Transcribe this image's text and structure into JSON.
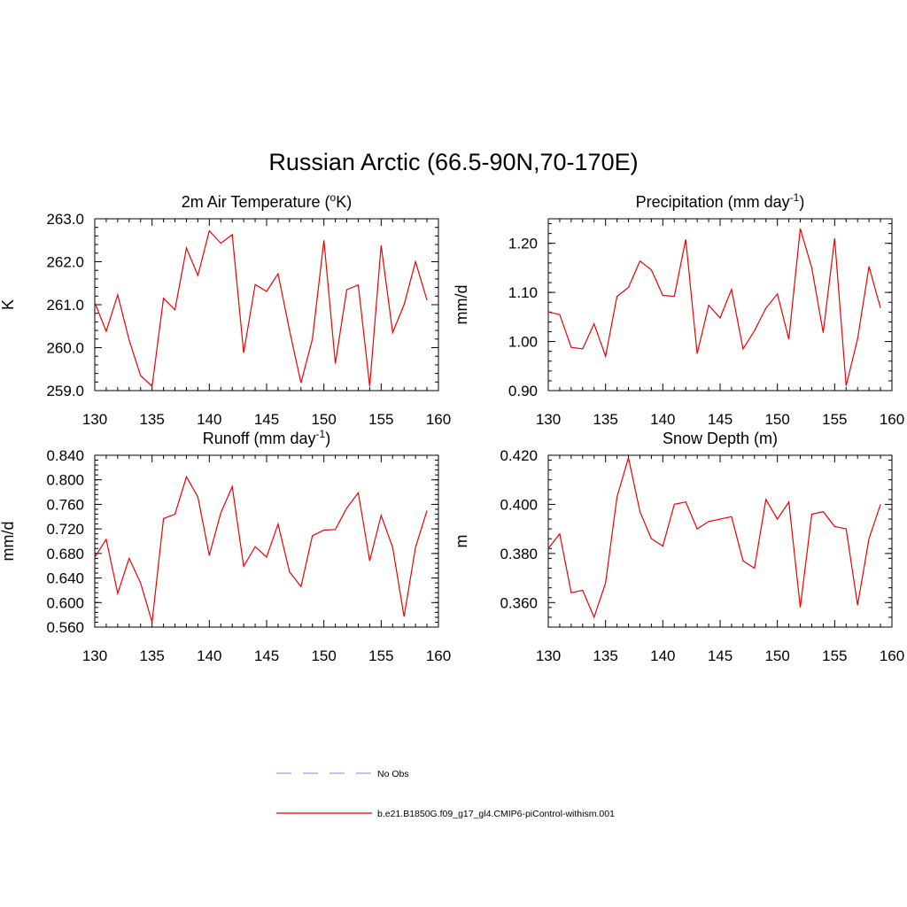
{
  "figure": {
    "title": "Russian Arctic (66.5-90N,70-170E)"
  },
  "legend": {
    "items": [
      {
        "label": "No Obs",
        "color": "#9999ff",
        "dashed": true
      },
      {
        "label": "b.e21.B1850G.f09_g17_gl4.CMIP6-piControl-withism.001",
        "color": "#ee0000",
        "dashed": false
      }
    ]
  },
  "chart_data": [
    {
      "type": "line",
      "title": "2m Air Temperature (oK)",
      "title_parts": {
        "pre": "2m Air Temperature (",
        "sup": "o",
        "post": "K)"
      },
      "ylabel": "K",
      "xlim": [
        130,
        160
      ],
      "ylim": [
        259.0,
        263.0
      ],
      "xticks": [
        130,
        135,
        140,
        145,
        150,
        155,
        160
      ],
      "yticks": [
        259.0,
        260.0,
        261.0,
        262.0,
        263.0
      ],
      "ydecimals": 1,
      "ytick_labels": [
        "259.0",
        "260.0",
        "261.0",
        "262.0",
        "263.0"
      ],
      "xtick_labels": [
        "130",
        "135",
        "140",
        "145",
        "150",
        "155",
        "160"
      ],
      "series": [
        {
          "name": "b.e21.B1850G.f09_g17_gl4.CMIP6-piControl-withism.001",
          "color": "#ee0000",
          "x": [
            130,
            131,
            132,
            133,
            134,
            135,
            136,
            137,
            138,
            139,
            140,
            141,
            142,
            143,
            144,
            145,
            146,
            147,
            148,
            149,
            150,
            151,
            152,
            153,
            154,
            155,
            156,
            157,
            158,
            159
          ],
          "values": [
            261.05,
            260.38,
            261.23,
            260.18,
            259.35,
            259.1,
            261.15,
            260.88,
            262.32,
            261.68,
            262.72,
            262.43,
            262.63,
            259.88,
            261.47,
            261.31,
            261.72,
            260.4,
            259.18,
            260.2,
            262.5,
            259.63,
            261.35,
            261.46,
            259.1,
            262.38,
            260.35,
            261.0,
            262.0,
            261.1
          ]
        }
      ]
    },
    {
      "type": "line",
      "title": "Precipitation (mm day-1)",
      "title_parts": {
        "pre": "Precipitation (mm day",
        "sup": "-1",
        "post": ")"
      },
      "ylabel": "mm/d",
      "xlim": [
        130,
        160
      ],
      "ylim": [
        0.9,
        1.25
      ],
      "xticks": [
        130,
        135,
        140,
        145,
        150,
        155,
        160
      ],
      "yticks": [
        0.9,
        1.0,
        1.1,
        1.2
      ],
      "ydecimals": 2,
      "ytick_labels": [
        "0.90",
        "1.00",
        "1.10",
        "1.20"
      ],
      "xtick_labels": [
        "130",
        "135",
        "140",
        "145",
        "150",
        "155",
        "160"
      ],
      "series": [
        {
          "name": "b.e21.B1850G.f09_g17_gl4.CMIP6-piControl-withism.001",
          "color": "#ee0000",
          "x": [
            130,
            131,
            132,
            133,
            134,
            135,
            136,
            137,
            138,
            139,
            140,
            141,
            142,
            143,
            144,
            145,
            146,
            147,
            148,
            149,
            150,
            151,
            152,
            153,
            154,
            155,
            156,
            157,
            158,
            159
          ],
          "values": [
            1.06,
            1.055,
            0.988,
            0.985,
            1.036,
            0.97,
            1.092,
            1.11,
            1.164,
            1.146,
            1.094,
            1.092,
            1.208,
            0.975,
            1.074,
            1.048,
            1.106,
            0.985,
            1.022,
            1.068,
            1.097,
            1.005,
            1.23,
            1.15,
            1.018,
            1.21,
            0.91,
            1.005,
            1.153,
            1.068
          ]
        }
      ]
    },
    {
      "type": "line",
      "title": "Runoff (mm day-1)",
      "title_parts": {
        "pre": "Runoff (mm day",
        "sup": "-1",
        "post": ")"
      },
      "ylabel": "mm/d",
      "xlim": [
        130,
        160
      ],
      "ylim": [
        0.56,
        0.84
      ],
      "xticks": [
        130,
        135,
        140,
        145,
        150,
        155,
        160
      ],
      "yticks": [
        0.56,
        0.6,
        0.64,
        0.68,
        0.72,
        0.76,
        0.8,
        0.84
      ],
      "ydecimals": 3,
      "ytick_labels": [
        "0.560",
        "0.600",
        "0.640",
        "0.680",
        "0.720",
        "0.760",
        "0.800",
        "0.840"
      ],
      "xtick_labels": [
        "130",
        "135",
        "140",
        "145",
        "150",
        "155",
        "160"
      ],
      "series": [
        {
          "name": "b.e21.B1850G.f09_g17_gl4.CMIP6-piControl-withism.001",
          "color": "#ee0000",
          "x": [
            130,
            131,
            132,
            133,
            134,
            135,
            136,
            137,
            138,
            139,
            140,
            141,
            142,
            143,
            144,
            145,
            146,
            147,
            148,
            149,
            150,
            151,
            152,
            153,
            154,
            155,
            156,
            157,
            158,
            159
          ],
          "values": [
            0.674,
            0.703,
            0.615,
            0.672,
            0.632,
            0.568,
            0.737,
            0.744,
            0.805,
            0.772,
            0.677,
            0.746,
            0.789,
            0.659,
            0.691,
            0.674,
            0.728,
            0.65,
            0.626,
            0.709,
            0.718,
            0.719,
            0.754,
            0.779,
            0.668,
            0.742,
            0.69,
            0.577,
            0.69,
            0.75
          ]
        }
      ]
    },
    {
      "type": "line",
      "title": "Snow Depth (m)",
      "title_parts": {
        "pre": "Snow Depth (m)",
        "sup": "",
        "post": ""
      },
      "ylabel": "m",
      "xlim": [
        130,
        160
      ],
      "ylim": [
        0.35,
        0.42
      ],
      "xticks": [
        130,
        135,
        140,
        145,
        150,
        155,
        160
      ],
      "yticks": [
        0.36,
        0.38,
        0.4,
        0.42
      ],
      "ydecimals": 3,
      "ytick_labels": [
        "0.360",
        "0.380",
        "0.400",
        "0.420"
      ],
      "xtick_labels": [
        "130",
        "135",
        "140",
        "145",
        "150",
        "155",
        "160"
      ],
      "series": [
        {
          "name": "b.e21.B1850G.f09_g17_gl4.CMIP6-piControl-withism.001",
          "color": "#ee0000",
          "x": [
            130,
            131,
            132,
            133,
            134,
            135,
            136,
            137,
            138,
            139,
            140,
            141,
            142,
            143,
            144,
            145,
            146,
            147,
            148,
            149,
            150,
            151,
            152,
            153,
            154,
            155,
            156,
            157,
            158,
            159
          ],
          "values": [
            0.382,
            0.388,
            0.364,
            0.365,
            0.354,
            0.368,
            0.403,
            0.419,
            0.397,
            0.386,
            0.383,
            0.4,
            0.401,
            0.39,
            0.393,
            0.394,
            0.395,
            0.377,
            0.374,
            0.402,
            0.394,
            0.401,
            0.358,
            0.396,
            0.397,
            0.391,
            0.39,
            0.359,
            0.386,
            0.4
          ]
        }
      ]
    }
  ]
}
